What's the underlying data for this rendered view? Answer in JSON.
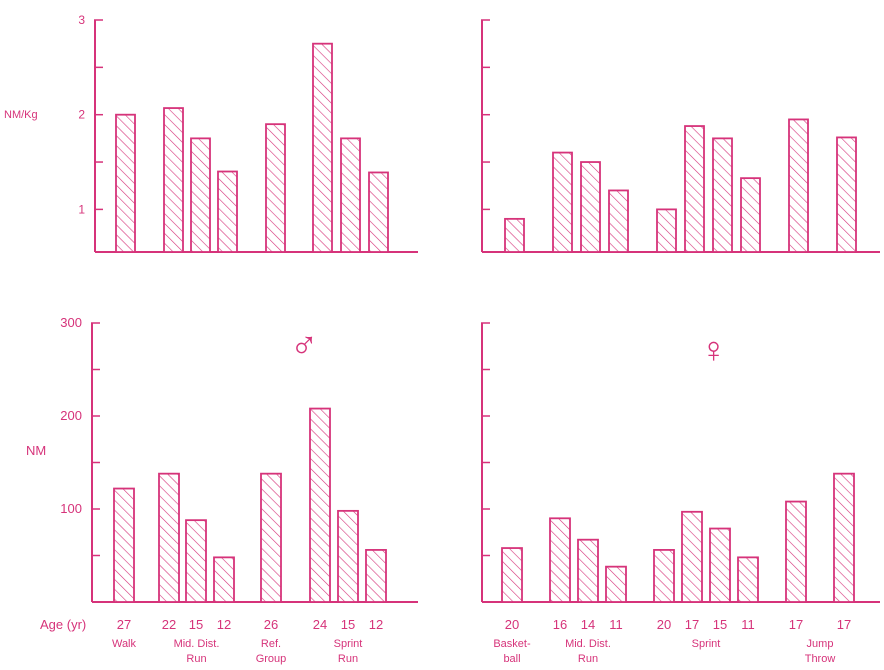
{
  "colors": {
    "ink": "#d6337a",
    "background": "#ffffff"
  },
  "symbols": {
    "male": "♂",
    "female": "♀"
  },
  "labels": {
    "age_prefix": "Age (yr)"
  },
  "chart_data": [
    {
      "id": "male-torque-per-kg",
      "type": "bar",
      "ylabel": "NM/Kg",
      "ylim": [
        0.5,
        3
      ],
      "yticks": [
        1,
        2,
        3
      ],
      "minor_yticks": [
        1.5,
        2.5
      ],
      "values": [
        2.0,
        2.07,
        1.75,
        1.4,
        1.9,
        2.75,
        1.75,
        1.39
      ],
      "grid": false
    },
    {
      "id": "female-torque-per-kg",
      "type": "bar",
      "ylim": [
        0.5,
        3
      ],
      "yticks": [],
      "values": [
        0.9,
        1.6,
        1.5,
        1.2,
        1.0,
        1.88,
        1.75,
        1.33,
        1.95,
        1.76
      ],
      "grid": false
    },
    {
      "id": "male-torque",
      "type": "bar",
      "ylabel": "NM",
      "ylim": [
        0,
        300
      ],
      "yticks": [
        100,
        200,
        300
      ],
      "minor_yticks": [
        50,
        150,
        250
      ],
      "values": [
        122,
        138,
        88,
        48,
        138,
        208,
        98,
        56
      ],
      "ages": [
        "27",
        "22",
        "15",
        "12",
        "26",
        "24",
        "15",
        "12"
      ],
      "groups": [
        {
          "name_lines": [
            "Walk"
          ]
        },
        {
          "name_lines": [
            "Mid. Dist.",
            "Run"
          ]
        },
        {
          "name_lines": [
            "Ref.",
            "Group"
          ]
        },
        {
          "name_lines": [
            "Sprint",
            "Run"
          ]
        }
      ],
      "grid": false
    },
    {
      "id": "female-torque",
      "type": "bar",
      "ylim": [
        0,
        300
      ],
      "yticks": [],
      "values": [
        58,
        90,
        67,
        38,
        56,
        97,
        79,
        48,
        108,
        138
      ],
      "ages": [
        "20",
        "16",
        "14",
        "11",
        "20",
        "17",
        "15",
        "11",
        "17",
        "17"
      ],
      "groups": [
        {
          "name_lines": [
            "Basket-",
            "ball"
          ]
        },
        {
          "name_lines": [
            "Mid. Dist.",
            "Run"
          ]
        },
        {
          "name_lines": [
            "Sprint"
          ]
        },
        {
          "name_lines": [
            "Jump",
            "Throw"
          ]
        }
      ],
      "grid": false
    }
  ]
}
